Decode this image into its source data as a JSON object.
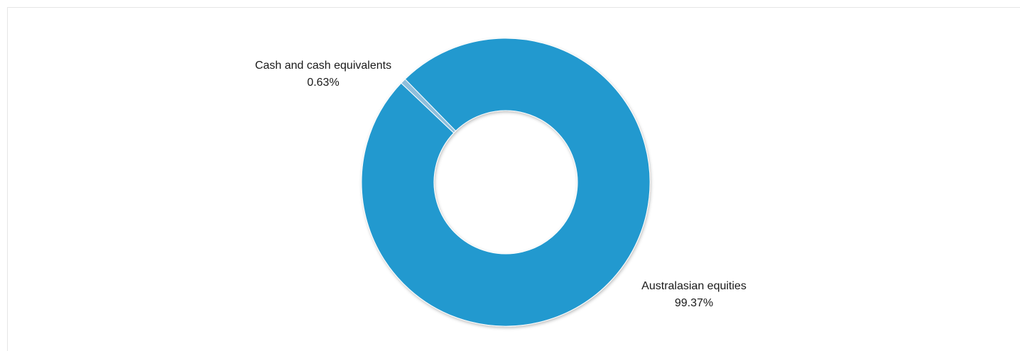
{
  "chart_data": {
    "type": "pie",
    "variant": "donut",
    "categories": [
      "Cash and cash equivalents",
      "Australasian equities"
    ],
    "values": [
      0.63,
      99.37
    ],
    "value_labels": [
      "0.63%",
      "99.37%"
    ],
    "colors": [
      "#8fbfdc",
      "#2399cf"
    ],
    "legend": "none",
    "title": ""
  }
}
